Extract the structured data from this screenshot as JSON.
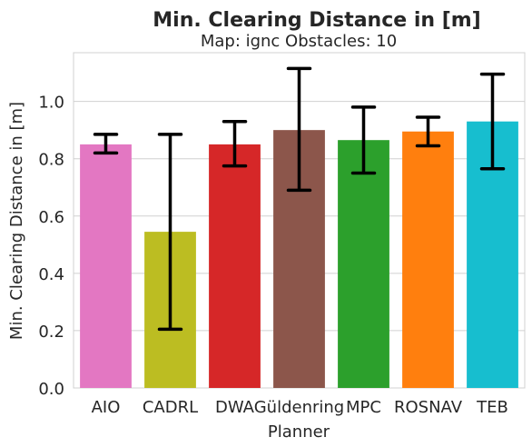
{
  "chart_data": {
    "type": "bar",
    "title": "Min. Clearing Distance in [m]",
    "subtitle": "Map: ignc Obstacles: 10",
    "xlabel": "Planner",
    "ylabel": "Min. Clearing Distance in [m]",
    "ylim": [
      0,
      1.17
    ],
    "yticks": [
      "0.0",
      "0.2",
      "0.4",
      "0.6",
      "0.8",
      "1.0"
    ],
    "grid": true,
    "categories": [
      "AIO",
      "CADRL",
      "DWA",
      "Güldenring",
      "MPC",
      "ROSNAV",
      "TEB"
    ],
    "values": [
      0.85,
      0.545,
      0.85,
      0.9,
      0.865,
      0.895,
      0.93
    ],
    "error_low": [
      0.82,
      0.205,
      0.775,
      0.69,
      0.75,
      0.845,
      0.765
    ],
    "error_high": [
      0.885,
      0.885,
      0.93,
      1.115,
      0.98,
      0.945,
      1.095
    ],
    "colors": [
      "#e377c2",
      "#bcbd22",
      "#d62728",
      "#8c564b",
      "#2ca02c",
      "#ff7f0e",
      "#17becf"
    ]
  }
}
